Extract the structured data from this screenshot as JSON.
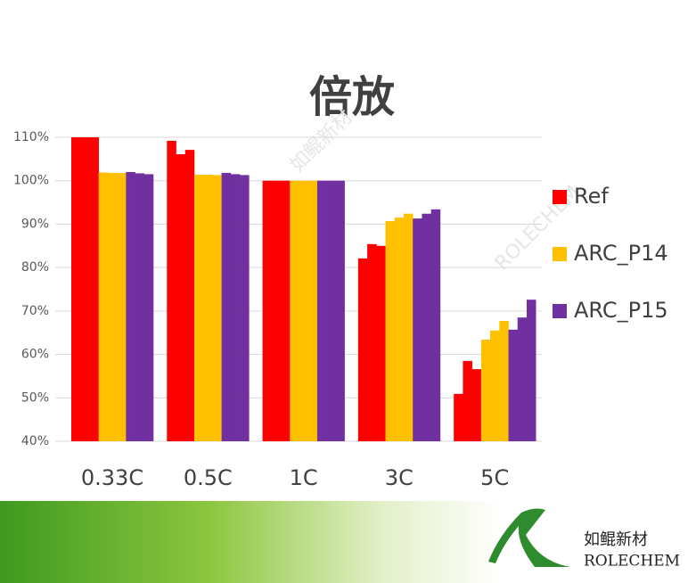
{
  "chart_data": {
    "type": "bar",
    "title": "倍放",
    "categories": [
      "0.33C",
      "0.5C",
      "1C",
      "3C",
      "5C"
    ],
    "series": [
      {
        "name": "Ref",
        "color": "#ff0000",
        "values": [
          [
            110,
            110,
            110
          ],
          [
            109.2,
            106.1,
            107.1
          ],
          [
            100,
            100,
            100
          ],
          [
            82.1,
            85.4,
            85.0
          ],
          [
            50.9,
            58.5,
            56.6
          ]
        ]
      },
      {
        "name": "ARC_P14",
        "color": "#ffc000",
        "values": [
          [
            101.9,
            101.8,
            101.8
          ],
          [
            101.4,
            101.4,
            101.3
          ],
          [
            100,
            100,
            100
          ],
          [
            90.7,
            91.5,
            92.4
          ],
          [
            63.4,
            65.5,
            67.7
          ]
        ]
      },
      {
        "name": "ARC_P15",
        "color": "#7030a0",
        "values": [
          [
            102,
            101.7,
            101.5
          ],
          [
            101.8,
            101.5,
            101.3
          ],
          [
            100,
            100,
            100
          ],
          [
            91.3,
            92.4,
            93.4
          ],
          [
            65.7,
            68.5,
            72.6
          ]
        ]
      }
    ],
    "ylim": [
      40,
      110
    ],
    "yticks": [
      {
        "value": 40,
        "label": "40%"
      },
      {
        "value": 50,
        "label": "50%"
      },
      {
        "value": 60,
        "label": "60%"
      },
      {
        "value": 70,
        "label": "70%"
      },
      {
        "value": 80,
        "label": "80%"
      },
      {
        "value": 90,
        "label": "90%"
      },
      {
        "value": 100,
        "label": "100%"
      },
      {
        "value": 110,
        "label": "110%"
      }
    ],
    "grid": true,
    "legend": "right"
  },
  "brand": {
    "name_cn": "如鲲新材",
    "name_en": "ROLECHEM"
  }
}
